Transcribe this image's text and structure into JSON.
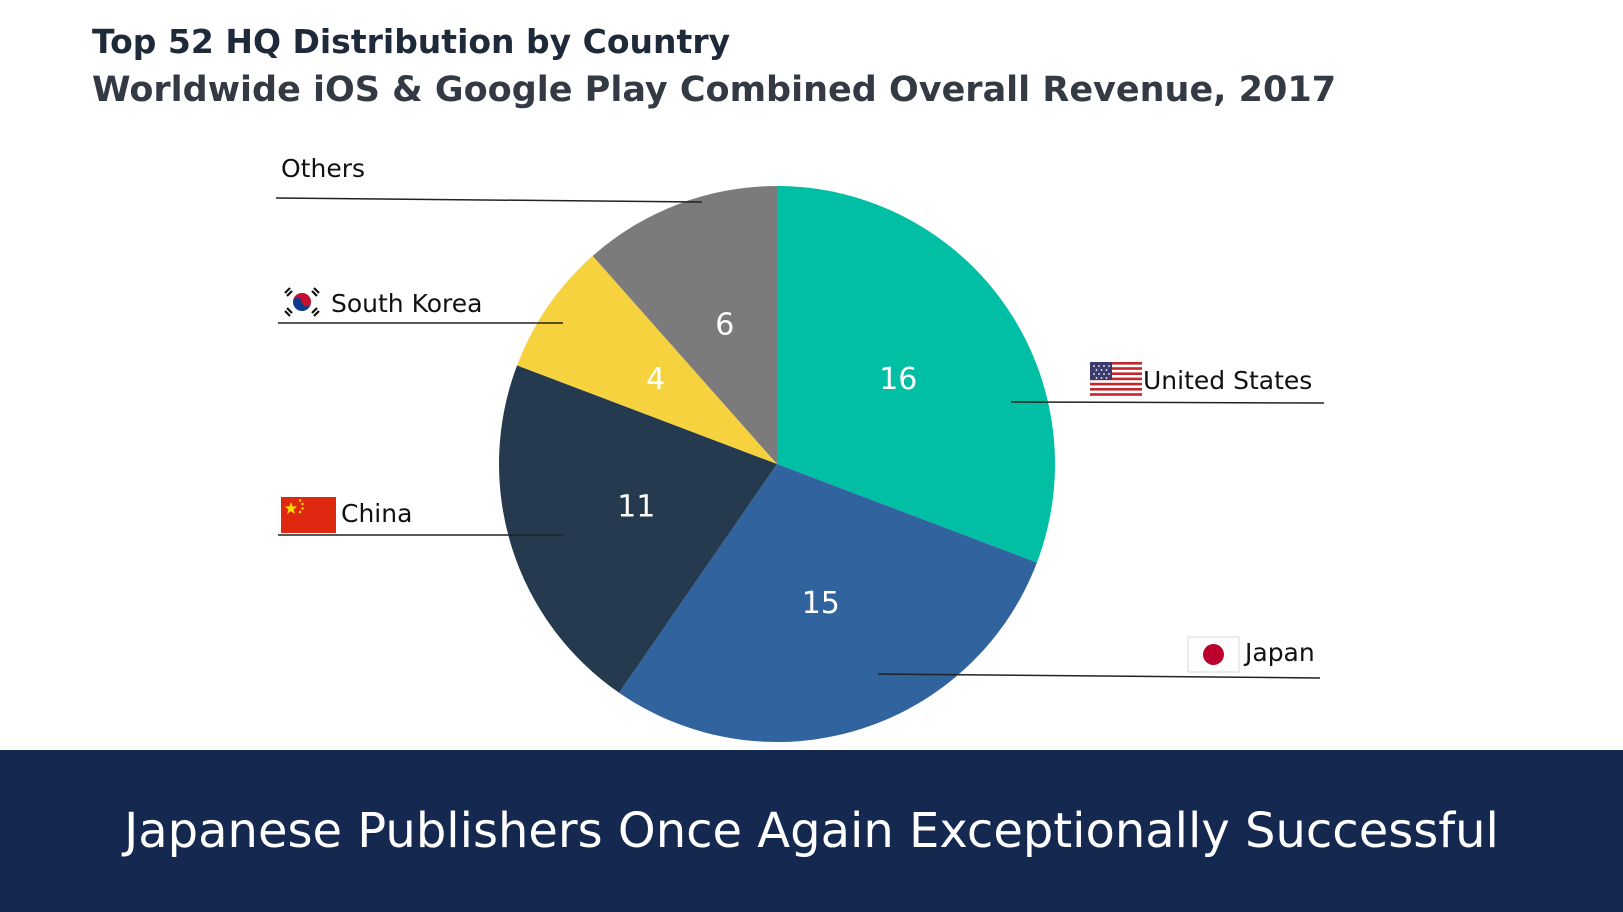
{
  "header": {
    "title": "Top 52 HQ Distribution by Country",
    "subtitle": "Worldwide iOS & Google Play Combined Overall Revenue, 2017"
  },
  "chart_data": {
    "type": "pie",
    "title": "Top 52 HQ Distribution by Country",
    "subtitle": "Worldwide iOS & Google Play Combined Overall Revenue, 2017",
    "start": "12 o'clock, clockwise",
    "slices": [
      {
        "label": "United States",
        "value": 16,
        "color": "#00bfa5",
        "flag": "us-flag-icon"
      },
      {
        "label": "Japan",
        "value": 15,
        "color": "#31649e",
        "flag": "japan-flag-icon"
      },
      {
        "label": "China",
        "value": 11,
        "color": "#253a4f",
        "flag": "china-flag-icon"
      },
      {
        "label": "South Korea",
        "value": 4,
        "color": "#f5d23e",
        "flag": "south-korea-flag-icon"
      },
      {
        "label": "Others",
        "value": 6,
        "color": "#7b7b7b",
        "flag": ""
      }
    ],
    "total": 52
  },
  "footer": {
    "text": "Japanese Publishers Once Again Exceptionally Successful"
  }
}
